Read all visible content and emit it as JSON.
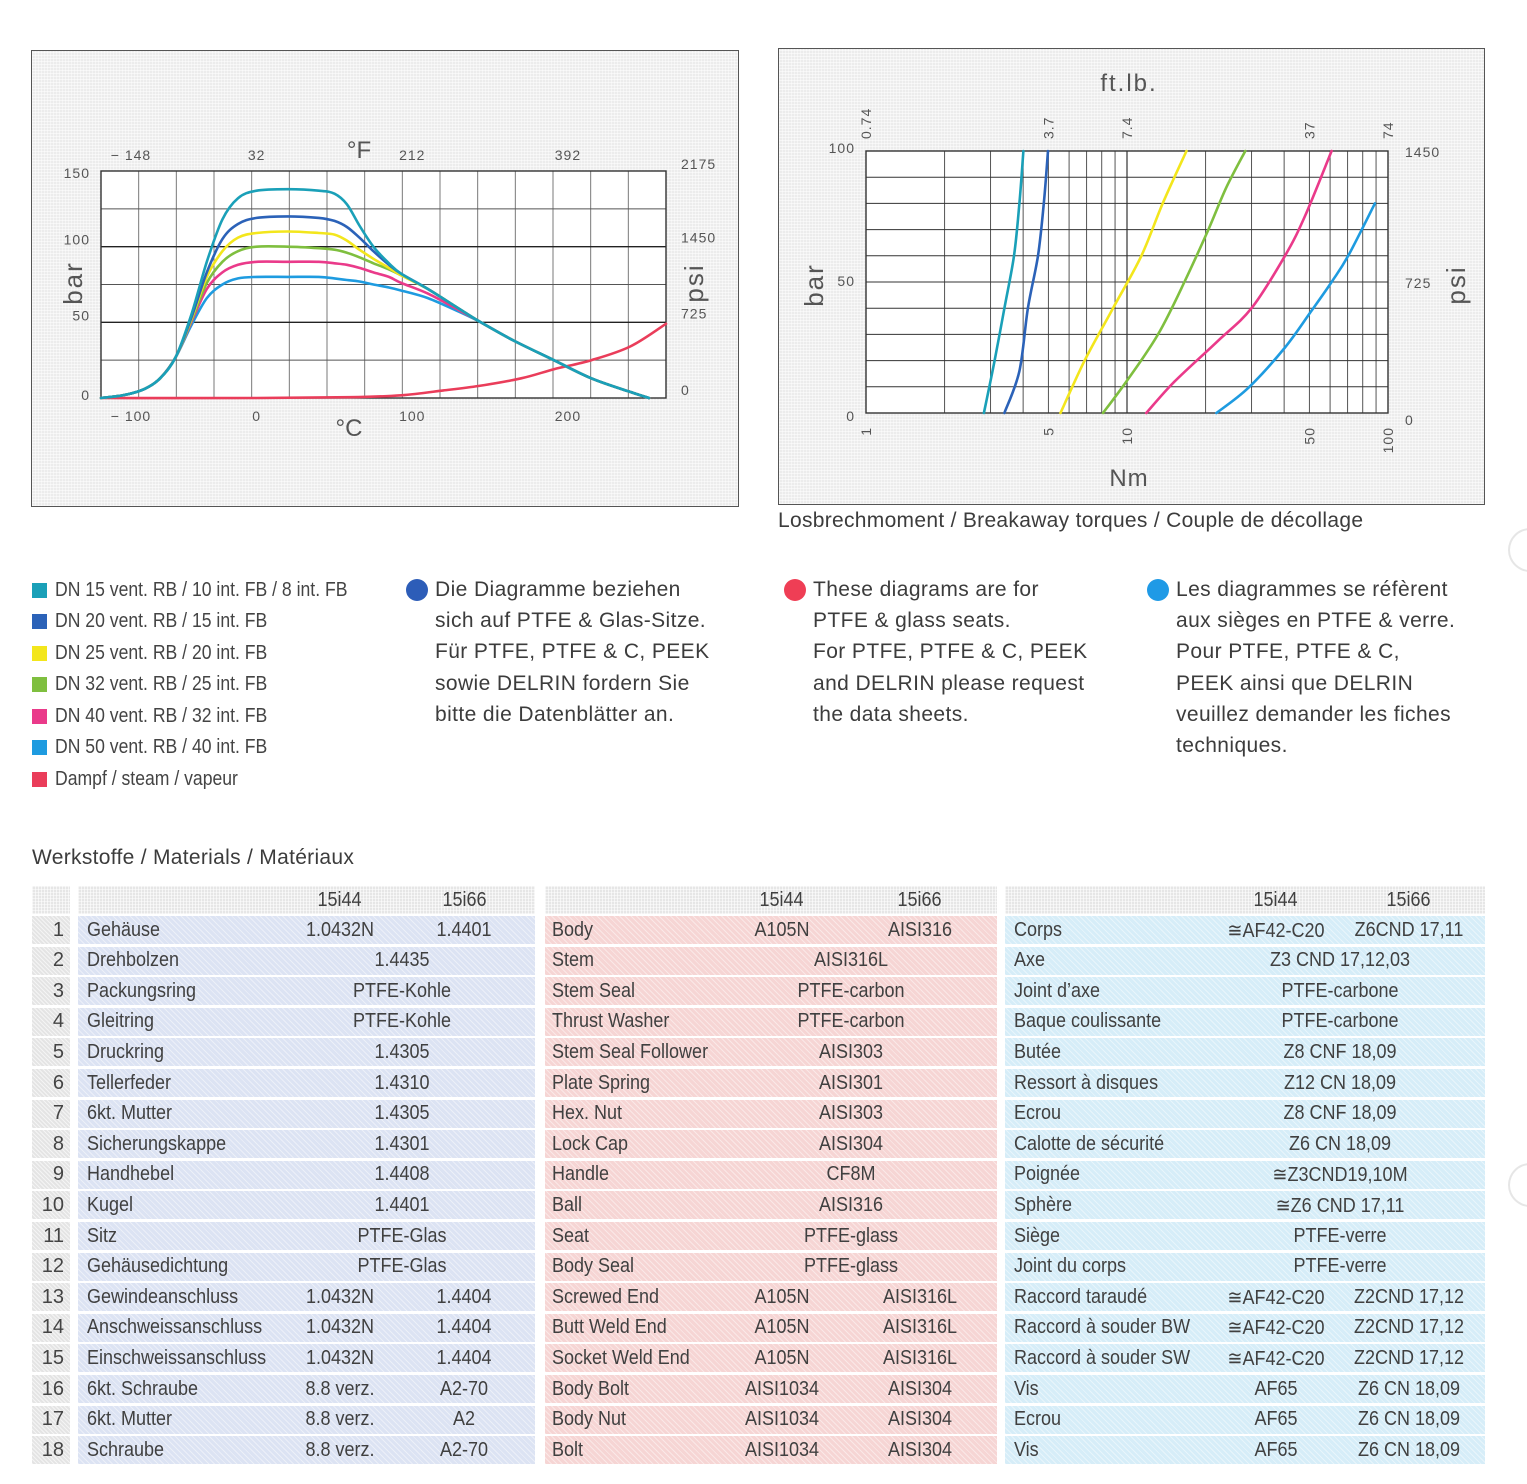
{
  "colors": {
    "dn15": "#1aa0b8",
    "dn20": "#2b62b8",
    "dn25": "#f3e61c",
    "dn32": "#7fbf3f",
    "dn40": "#ea3a8a",
    "dn50": "#1e9be0",
    "steam": "#ea3d5a",
    "note_de": "#2d5db8",
    "note_en": "#ef3e55",
    "note_fr": "#1f9ae6"
  },
  "chart_data": [
    {
      "type": "line",
      "title": "",
      "xlabel": "°C",
      "x2label": "°F",
      "ylabel": "bar",
      "y2label": "psi",
      "xlim": [
        -100,
        263
      ],
      "ylim": [
        0,
        150
      ],
      "grid": true,
      "x_ticks": [
        {
          "v": -100,
          "label": "− 100"
        },
        {
          "v": 0,
          "label": "0"
        },
        {
          "v": 100,
          "label": "100"
        },
        {
          "v": 200,
          "label": "200"
        }
      ],
      "x2_ticks": [
        {
          "v": -100,
          "label": "− 148"
        },
        {
          "v": 0,
          "label": "32"
        },
        {
          "v": 100,
          "label": "212"
        },
        {
          "v": 200,
          "label": "392"
        }
      ],
      "y_ticks": [
        {
          "v": 0,
          "label": "0"
        },
        {
          "v": 50,
          "label": "50"
        },
        {
          "v": 100,
          "label": "100"
        },
        {
          "v": 150,
          "label": "150"
        }
      ],
      "y2_ticks": [
        {
          "v": 0,
          "label": "0"
        },
        {
          "v": 50,
          "label": "725"
        },
        {
          "v": 100,
          "label": "1450"
        },
        {
          "v": 150,
          "label": "2175"
        }
      ],
      "series": [
        {
          "name": "DN 15 vent. RB / 10 int. FB / 8 int. FB",
          "color_key": "dn15",
          "x": [
            -100,
            -85,
            -72,
            -62,
            -52,
            -42,
            -32,
            -22,
            -12,
            0,
            20,
            40,
            50,
            58,
            66,
            75,
            85,
            93,
            110,
            130,
            144,
            165,
            191,
            215,
            240,
            252
          ],
          "y": [
            0,
            2,
            6,
            13,
            27,
            55,
            90,
            118,
            132,
            137,
            138,
            137,
            135,
            128,
            114,
            100,
            89,
            82,
            72,
            59,
            50,
            38,
            25,
            13,
            4,
            0
          ]
        },
        {
          "name": "DN 20 vent. RB / 15 int. FB",
          "color_key": "dn20",
          "x": [
            -100,
            -85,
            -72,
            -62,
            -52,
            -42,
            -32,
            -22,
            -12,
            0,
            20,
            40,
            50,
            58,
            66,
            75,
            85,
            93,
            110,
            130,
            144,
            165,
            191,
            215,
            240,
            252
          ],
          "y": [
            0,
            2,
            6,
            13,
            27,
            53,
            83,
            105,
            115,
            119,
            120,
            119,
            117,
            113,
            106,
            97,
            88,
            82,
            72,
            59,
            50,
            38,
            25,
            13,
            4,
            0
          ]
        },
        {
          "name": "DN 25 vent. RB / 20 int. FB",
          "color_key": "dn25",
          "x": [
            -100,
            -85,
            -72,
            -62,
            -52,
            -42,
            -32,
            -22,
            -12,
            0,
            20,
            40,
            50,
            58,
            66,
            75,
            85,
            93,
            110,
            130,
            144,
            165,
            191,
            215,
            240,
            252
          ],
          "y": [
            0,
            2,
            6,
            13,
            27,
            52,
            80,
            97,
            106,
            109,
            110,
            109,
            108,
            104,
            98,
            92,
            86,
            81,
            72,
            59,
            50,
            38,
            25,
            13,
            4,
            0
          ]
        },
        {
          "name": "DN 32 vent. RB / 25 int. FB",
          "color_key": "dn32",
          "x": [
            -100,
            -85,
            -72,
            -62,
            -52,
            -42,
            -32,
            -22,
            -12,
            0,
            20,
            40,
            50,
            58,
            66,
            75,
            85,
            93,
            110,
            130,
            144,
            165,
            191,
            215,
            240,
            252
          ],
          "y": [
            0,
            2,
            6,
            13,
            27,
            51,
            76,
            90,
            97,
            100,
            100,
            99,
            98,
            96,
            93,
            89,
            85,
            81,
            72,
            59,
            50,
            38,
            25,
            13,
            4,
            0
          ]
        },
        {
          "name": "DN 40 vent. RB / 32 int. FB",
          "color_key": "dn40",
          "x": [
            -100,
            -85,
            -72,
            -62,
            -52,
            -42,
            -32,
            -22,
            -12,
            0,
            20,
            40,
            50,
            58,
            66,
            75,
            85,
            93,
            110,
            130,
            144,
            165,
            191,
            215,
            240,
            252
          ],
          "y": [
            0,
            2,
            6,
            13,
            27,
            50,
            72,
            83,
            88,
            90,
            90,
            90,
            89,
            88,
            86,
            83,
            80,
            76,
            69,
            58,
            50,
            38,
            25,
            13,
            4,
            0
          ]
        },
        {
          "name": "DN 50 vent. RB / 40 int. FB",
          "color_key": "dn50",
          "x": [
            -100,
            -85,
            -72,
            -62,
            -52,
            -42,
            -32,
            -22,
            -12,
            0,
            20,
            40,
            50,
            58,
            66,
            75,
            85,
            93,
            110,
            130,
            144,
            165,
            191,
            215,
            240,
            252
          ],
          "y": [
            0,
            2,
            6,
            13,
            27,
            48,
            66,
            75,
            79,
            80,
            80,
            80,
            79,
            78,
            77,
            75,
            73,
            71,
            66,
            57,
            50,
            38,
            25,
            13,
            4,
            0
          ]
        },
        {
          "name": "Dampf / steam / vapeur",
          "color_key": "steam",
          "x": [
            -100,
            0,
            60,
            93,
            120,
            143,
            170,
            191,
            215,
            240,
            263
          ],
          "y": [
            0,
            0,
            0.5,
            1.8,
            5,
            8,
            13,
            19,
            25,
            34,
            49
          ]
        }
      ]
    },
    {
      "type": "line",
      "title": "Losbrechmoment / Breakaway torques / Couple de décollage",
      "xlabel": "Nm",
      "x2label": "ft.lb.",
      "ylabel": "bar",
      "y2label": "psi",
      "xscale": "log",
      "xlim": [
        1,
        100
      ],
      "ylim": [
        0,
        100
      ],
      "grid": true,
      "x_ticks": [
        {
          "v": 1,
          "label": "1"
        },
        {
          "v": 5,
          "label": "5"
        },
        {
          "v": 10,
          "label": "10"
        },
        {
          "v": 50,
          "label": "50"
        },
        {
          "v": 100,
          "label": "100"
        }
      ],
      "x2_ticks": [
        {
          "v": 1,
          "label": "0.74"
        },
        {
          "v": 5,
          "label": "3.7"
        },
        {
          "v": 10,
          "label": "7.4"
        },
        {
          "v": 50,
          "label": "37"
        },
        {
          "v": 100,
          "label": "74"
        }
      ],
      "y_ticks": [
        {
          "v": 0,
          "label": "0"
        },
        {
          "v": 50,
          "label": "50"
        },
        {
          "v": 100,
          "label": "100"
        }
      ],
      "y2_ticks": [
        {
          "v": 0,
          "label": "0"
        },
        {
          "v": 50,
          "label": "725"
        },
        {
          "v": 100,
          "label": "1450"
        }
      ],
      "series": [
        {
          "name": "DN 15 vent. RB / 10 int. FB / 8 int. FB",
          "color_key": "dn15",
          "x": [
            2.83,
            3.11,
            3.39,
            3.69,
            3.87,
            4.01
          ],
          "y": [
            0,
            20,
            40,
            60,
            80,
            100
          ]
        },
        {
          "name": "DN 20 vent. RB / 15 int. FB",
          "color_key": "dn20",
          "x": [
            3.39,
            3.87,
            4.17,
            4.56,
            4.8,
            4.98
          ],
          "y": [
            0,
            16,
            40,
            60,
            80,
            100
          ]
        },
        {
          "name": "DN 25 vent. RB / 20 int. FB",
          "color_key": "dn25",
          "x": [
            5.56,
            6.88,
            8.84,
            11.35,
            13.7,
            16.9
          ],
          "y": [
            0,
            20,
            40,
            60,
            80,
            100
          ]
        },
        {
          "name": "DN 32 vent. RB / 25 int. FB",
          "color_key": "dn32",
          "x": [
            8.09,
            9.94,
            13.15,
            16.6,
            20.5,
            24.0,
            28.4
          ],
          "y": [
            0,
            12,
            30,
            50,
            70,
            86,
            100
          ]
        },
        {
          "name": "DN 40 vent. RB / 32 int. FB",
          "color_key": "dn40",
          "x": [
            11.86,
            15.2,
            22.3,
            30.0,
            40.3,
            48.0,
            60.8
          ],
          "y": [
            0,
            12,
            27.5,
            40,
            60,
            75,
            100
          ]
        },
        {
          "name": "DN 50 vent. RB / 40 int. FB",
          "color_key": "dn50",
          "x": [
            22.0,
            29.1,
            40.3,
            50.9,
            60.8,
            70.4,
            89.1
          ],
          "y": [
            0,
            9.5,
            25,
            39,
            50,
            60,
            80
          ]
        }
      ]
    }
  ],
  "caption": "Losbrechmoment / Breakaway torques / Couple de décollage",
  "legend": [
    {
      "label": "DN 15 vent. RB / 10 int. FB / 8 int. FB",
      "color_key": "dn15"
    },
    {
      "label": "DN 20 vent. RB / 15 int. FB",
      "color_key": "dn20"
    },
    {
      "label": "DN 25 vent. RB / 20 int. FB",
      "color_key": "dn25"
    },
    {
      "label": "DN 32 vent. RB / 25 int. FB",
      "color_key": "dn32"
    },
    {
      "label": "DN 40 vent. RB / 32 int. FB",
      "color_key": "dn40"
    },
    {
      "label": "DN 50 vent. RB / 40 int. FB",
      "color_key": "dn50"
    },
    {
      "label": "Dampf / steam / vapeur",
      "color_key": "steam"
    }
  ],
  "notes": {
    "de": [
      "Die Diagramme beziehen",
      "sich auf PTFE & Glas-Sitze.",
      "Für PTFE, PTFE & C, PEEK",
      "sowie DELRIN fordern Sie",
      "bitte die Datenblätter an."
    ],
    "en": [
      "These diagrams are for",
      "PTFE & glass seats.",
      "For PTFE, PTFE & C, PEEK",
      "and DELRIN please request",
      "the data sheets."
    ],
    "fr": [
      "Les diagrammes se réfèrent",
      "aux sièges en PTFE & verre.",
      "Pour PTFE, PTFE & C,",
      "PEEK ainsi que DELRIN",
      "veuillez demander les fiches",
      "techniques."
    ]
  },
  "materials": {
    "title": "Werkstoffe / Materials / Matériaux",
    "col_a": "15i44",
    "col_b": "15i66",
    "rows": [
      {
        "n": "1",
        "de": "Gehäuse",
        "de_a": "1.0432N",
        "de_b": "1.4401",
        "en": "Body",
        "en_a": "A105N",
        "en_b": "AISI316",
        "fr": "Corps",
        "fr_a": "≅AF42-C20",
        "fr_b": "Z6CND 17,11"
      },
      {
        "n": "2",
        "de": "Drehbolzen",
        "de_all": "1.4435",
        "en": "Stem",
        "en_all": "AISI316L",
        "fr": "Axe",
        "fr_all": "Z3 CND 17,12,03"
      },
      {
        "n": "3",
        "de": "Packungsring",
        "de_all": "PTFE-Kohle",
        "en": "Stem Seal",
        "en_all": "PTFE-carbon",
        "fr": "Joint d’axe",
        "fr_all": "PTFE-carbone"
      },
      {
        "n": "4",
        "de": "Gleitring",
        "de_all": "PTFE-Kohle",
        "en": "Thrust Washer",
        "en_all": "PTFE-carbon",
        "fr": "Baque coulissante",
        "fr_all": "PTFE-carbone"
      },
      {
        "n": "5",
        "de": "Druckring",
        "de_all": "1.4305",
        "en": "Stem Seal Follower",
        "en_all": "AISI303",
        "fr": "Butée",
        "fr_all": "Z8 CNF 18,09"
      },
      {
        "n": "6",
        "de": "Tellerfeder",
        "de_all": "1.4310",
        "en": "Plate Spring",
        "en_all": "AISI301",
        "fr": "Ressort à disques",
        "fr_all": "Z12 CN 18,09"
      },
      {
        "n": "7",
        "de": "6kt. Mutter",
        "de_all": "1.4305",
        "en": "Hex. Nut",
        "en_all": "AISI303",
        "fr": "Ecrou",
        "fr_all": "Z8 CNF 18,09"
      },
      {
        "n": "8",
        "de": "Sicherungskappe",
        "de_all": "1.4301",
        "en": "Lock Cap",
        "en_all": "AISI304",
        "fr": "Calotte de sécurité",
        "fr_all": "Z6 CN 18,09"
      },
      {
        "n": "9",
        "de": "Handhebel",
        "de_all": "1.4408",
        "en": "Handle",
        "en_all": "CF8M",
        "fr": "Poignée",
        "fr_all": "≅Z3CND19,10M"
      },
      {
        "n": "10",
        "de": "Kugel",
        "de_all": "1.4401",
        "en": "Ball",
        "en_all": "AISI316",
        "fr": "Sphère",
        "fr_all": "≅Z6 CND 17,11"
      },
      {
        "n": "11",
        "de": "Sitz",
        "de_all": "PTFE-Glas",
        "en": "Seat",
        "en_all": "PTFE-glass",
        "fr": "Siège",
        "fr_all": "PTFE-verre"
      },
      {
        "n": "12",
        "de": "Gehäusedichtung",
        "de_all": "PTFE-Glas",
        "en": "Body Seal",
        "en_all": "PTFE-glass",
        "fr": "Joint du corps",
        "fr_all": "PTFE-verre"
      },
      {
        "n": "13",
        "de": "Gewindeanschluss",
        "de_a": "1.0432N",
        "de_b": "1.4404",
        "en": "Screwed End",
        "en_a": "A105N",
        "en_b": "AISI316L",
        "fr": "Raccord taraudé",
        "fr_a": "≅AF42-C20",
        "fr_b": "Z2CND 17,12"
      },
      {
        "n": "14",
        "de": "Anschweissanschluss",
        "de_a": "1.0432N",
        "de_b": "1.4404",
        "en": "Butt Weld End",
        "en_a": "A105N",
        "en_b": "AISI316L",
        "fr": "Raccord à souder BW",
        "fr_a": "≅AF42-C20",
        "fr_b": "Z2CND 17,12"
      },
      {
        "n": "15",
        "de": "Einschweissanschluss",
        "de_a": "1.0432N",
        "de_b": "1.4404",
        "en": "Socket Weld End",
        "en_a": "A105N",
        "en_b": "AISI316L",
        "fr": "Raccord à souder SW",
        "fr_a": "≅AF42-C20",
        "fr_b": "Z2CND 17,12"
      },
      {
        "n": "16",
        "de": "6kt. Schraube",
        "de_a": "8.8 verz.",
        "de_b": "A2-70",
        "en": "Body Bolt",
        "en_a": "AISI1034",
        "en_b": "AISI304",
        "fr": "Vis",
        "fr_a": "AF65",
        "fr_b": "Z6 CN 18,09"
      },
      {
        "n": "17",
        "de": "6kt. Mutter",
        "de_a": "8.8 verz.",
        "de_b": "A2",
        "en": "Body Nut",
        "en_a": "AISI1034",
        "en_b": "AISI304",
        "fr": "Ecrou",
        "fr_a": "AF65",
        "fr_b": "Z6 CN 18,09"
      },
      {
        "n": "18",
        "de": "Schraube",
        "de_a": "8.8 verz.",
        "de_b": "A2-70",
        "en": "Bolt",
        "en_a": "AISI1034",
        "en_b": "AISI304",
        "fr": "Vis",
        "fr_a": "AF65",
        "fr_b": "Z6 CN 18,09"
      }
    ]
  }
}
